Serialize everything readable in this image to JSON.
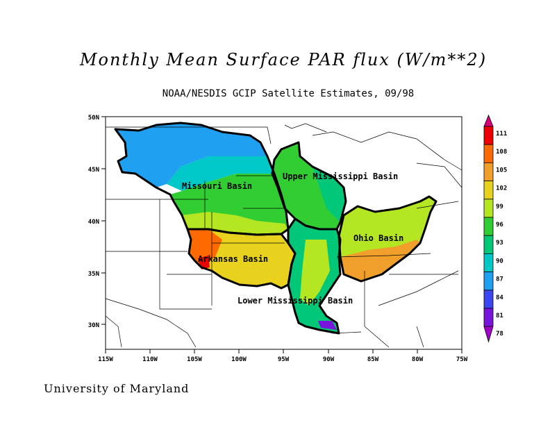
{
  "title": "Monthly Mean Surface PAR flux (W/m**2)",
  "subtitle": "NOAA/NESDIS GCIP Satellite Estimates, 09/98",
  "credit": "University of Maryland",
  "map": {
    "lon_labels": [
      "115W",
      "110W",
      "105W",
      "100W",
      "95W",
      "90W",
      "85W",
      "80W",
      "75W"
    ],
    "lat_labels": [
      "50N",
      "45N",
      "40N",
      "35N",
      "30N"
    ],
    "basin_labels": [
      "Missouri Basin",
      "Upper Mississippi Basin",
      "Ohio Basin",
      "Arkansas Basin",
      "Lower Mississippi Basin"
    ]
  },
  "colorbar": {
    "labels": [
      "111",
      "108",
      "105",
      "102",
      "99",
      "96",
      "93",
      "90",
      "87",
      "84",
      "81",
      "78"
    ],
    "colors": [
      "#d6007c",
      "#ee0000",
      "#ff6a00",
      "#f0a02a",
      "#e8d21e",
      "#b4e622",
      "#32cd32",
      "#00c878",
      "#00c8c8",
      "#20a0f0",
      "#3c46f0",
      "#7814dc",
      "#a000c8"
    ]
  }
}
